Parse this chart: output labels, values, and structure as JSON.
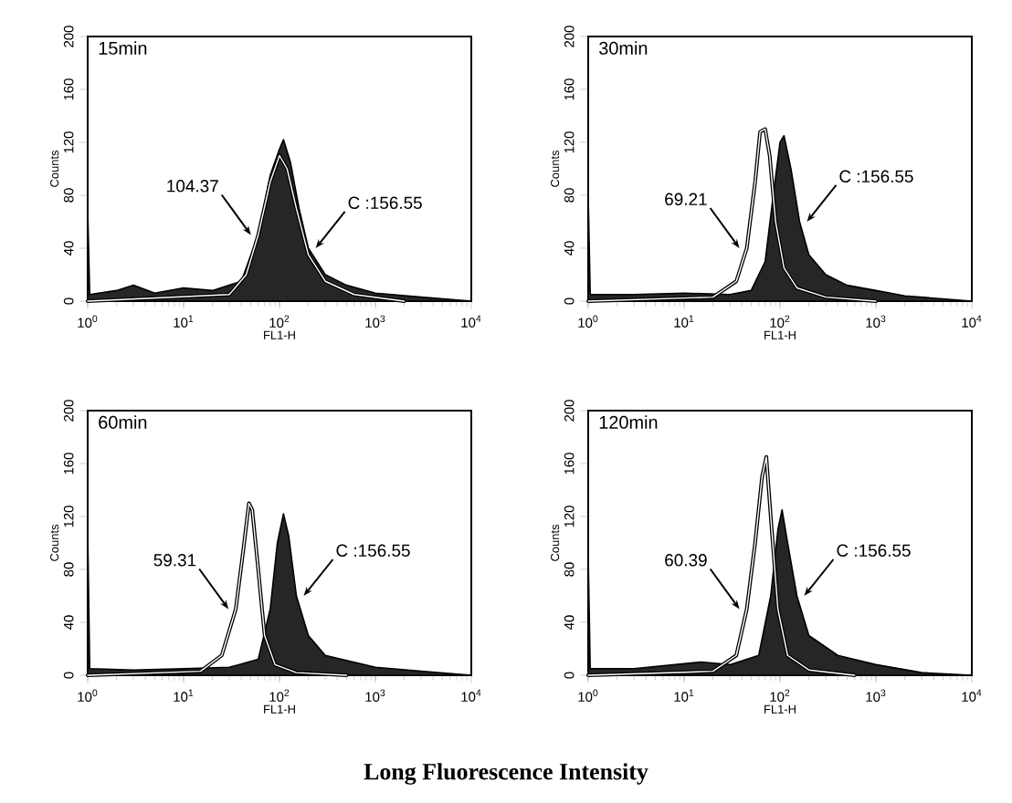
{
  "chart_data": [
    {
      "type": "area",
      "title": "15min",
      "xlabel": "FL1-H",
      "ylabel": "Counts",
      "log": "x",
      "xlim": [
        1,
        10000
      ],
      "ylim": [
        0,
        200
      ],
      "xticks": [
        {
          "value": 1,
          "label": "10$^{0}$"
        },
        {
          "value": 10,
          "label": "10$^{1}$"
        },
        {
          "value": 100,
          "label": "10$^{2}$"
        },
        {
          "value": 1000,
          "label": "10$^{3}$"
        },
        {
          "value": 10000,
          "label": "10$^{4}$"
        }
      ],
      "yticks": [
        0,
        40,
        80,
        120,
        160,
        200
      ],
      "series": [
        {
          "type": "line",
          "color": "#ffffff",
          "x": [
            1,
            30,
            45,
            60,
            80,
            100,
            120,
            150,
            200,
            300,
            600,
            2000
          ],
          "values": [
            0,
            5,
            20,
            50,
            90,
            110,
            100,
            70,
            35,
            15,
            5,
            0
          ]
        },
        {
          "color": "#262626",
          "x": [
            1,
            1.05,
            2,
            3,
            5,
            10,
            20,
            40,
            60,
            80,
            100,
            110,
            130,
            160,
            200,
            300,
            500,
            1000,
            3000,
            10000
          ],
          "values": [
            70,
            5,
            8,
            12,
            6,
            10,
            8,
            15,
            50,
            95,
            115,
            122,
            105,
            70,
            40,
            20,
            12,
            6,
            3,
            0
          ]
        }
      ],
      "annotations": [
        "104.37",
        "C :156.55"
      ]
    },
    {
      "type": "area",
      "title": "30min",
      "xlabel": "FL1-H",
      "ylabel": "Counts",
      "log": "x",
      "xlim": [
        1,
        10000
      ],
      "ylim": [
        0,
        200
      ],
      "xticks": [
        {
          "value": 1,
          "label": "10$^{0}$"
        },
        {
          "value": 10,
          "label": "10$^{1}$"
        },
        {
          "value": 100,
          "label": "10$^{2}$"
        },
        {
          "value": 1000,
          "label": "10$^{3}$"
        },
        {
          "value": 10000,
          "label": "10$^{4}$"
        }
      ],
      "yticks": [
        0,
        40,
        80,
        120,
        160,
        200
      ],
      "series": [
        {
          "type": "line",
          "color": "#ffffff",
          "x": [
            1,
            20,
            35,
            45,
            55,
            62,
            70,
            78,
            90,
            110,
            150,
            300,
            1000
          ],
          "values": [
            0,
            3,
            15,
            40,
            90,
            128,
            130,
            110,
            60,
            25,
            10,
            3,
            0
          ]
        },
        {
          "color": "#262626",
          "x": [
            1,
            1.05,
            3,
            10,
            30,
            50,
            70,
            85,
            100,
            110,
            130,
            160,
            200,
            300,
            500,
            1000,
            2000,
            10000
          ],
          "values": [
            80,
            5,
            5,
            6,
            5,
            8,
            30,
            80,
            120,
            125,
            100,
            60,
            35,
            20,
            12,
            8,
            4,
            0
          ]
        }
      ],
      "annotations": [
        "69.21",
        "C :156.55"
      ]
    },
    {
      "type": "area",
      "title": "60min",
      "xlabel": "FL1-H",
      "ylabel": "Counts",
      "log": "x",
      "xlim": [
        1,
        10000
      ],
      "ylim": [
        0,
        200
      ],
      "xticks": [
        {
          "value": 1,
          "label": "10$^{0}$"
        },
        {
          "value": 10,
          "label": "10$^{1}$"
        },
        {
          "value": 100,
          "label": "10$^{2}$"
        },
        {
          "value": 1000,
          "label": "10$^{3}$"
        },
        {
          "value": 10000,
          "label": "10$^{4}$"
        }
      ],
      "yticks": [
        0,
        40,
        80,
        120,
        160,
        200
      ],
      "series": [
        {
          "type": "line",
          "color": "#ffffff",
          "x": [
            1,
            15,
            25,
            35,
            42,
            48,
            52,
            60,
            70,
            90,
            150,
            500
          ],
          "values": [
            0,
            3,
            15,
            50,
            95,
            130,
            125,
            80,
            30,
            8,
            2,
            0
          ]
        },
        {
          "color": "#262626",
          "x": [
            1,
            1.05,
            3,
            10,
            30,
            60,
            80,
            95,
            110,
            125,
            150,
            200,
            300,
            1000,
            3000,
            10000
          ],
          "values": [
            110,
            5,
            4,
            5,
            6,
            12,
            50,
            100,
            122,
            105,
            60,
            30,
            15,
            6,
            3,
            0
          ]
        }
      ],
      "annotations": [
        "59.31",
        "C :156.55"
      ]
    },
    {
      "type": "area",
      "title": "120min",
      "xlabel": "FL1-H",
      "ylabel": "Counts",
      "log": "x",
      "xlim": [
        1,
        10000
      ],
      "ylim": [
        0,
        200
      ],
      "xticks": [
        {
          "value": 1,
          "label": "10$^{0}$"
        },
        {
          "value": 10,
          "label": "10$^{1}$"
        },
        {
          "value": 100,
          "label": "10$^{2}$"
        },
        {
          "value": 1000,
          "label": "10$^{3}$"
        },
        {
          "value": 10000,
          "label": "10$^{4}$"
        }
      ],
      "yticks": [
        0,
        40,
        80,
        120,
        160,
        200
      ],
      "series": [
        {
          "type": "line",
          "color": "#ffffff",
          "x": [
            1,
            20,
            35,
            45,
            55,
            65,
            72,
            80,
            95,
            120,
            200,
            600
          ],
          "values": [
            0,
            3,
            15,
            50,
            100,
            150,
            165,
            120,
            50,
            15,
            4,
            0
          ]
        },
        {
          "color": "#262626",
          "x": [
            1,
            1.05,
            3,
            15,
            30,
            60,
            80,
            95,
            105,
            120,
            150,
            200,
            400,
            1000,
            3000,
            10000
          ],
          "values": [
            90,
            5,
            5,
            10,
            8,
            15,
            60,
            110,
            125,
            100,
            60,
            30,
            15,
            8,
            2,
            0
          ]
        }
      ],
      "annotations": [
        "60.39",
        "C :156.55"
      ]
    },
    {
      "type": "other",
      "title": "Long Fluorescence Intensity"
    }
  ]
}
